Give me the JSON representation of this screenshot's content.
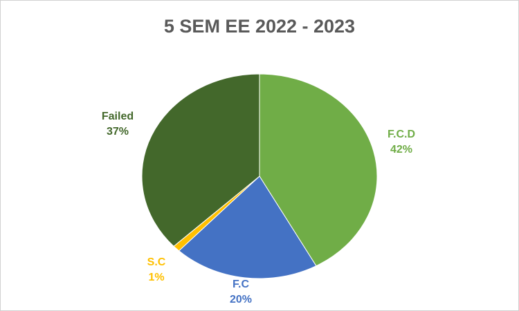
{
  "chart_data": {
    "type": "pie",
    "title": "5 SEM EE 2022 - 2023",
    "categories": [
      "F.C.D",
      "F.C",
      "S.C",
      "Failed"
    ],
    "values": [
      42,
      20,
      1,
      37
    ],
    "value_labels": [
      "42%",
      "20%",
      "1%",
      "37%"
    ],
    "colors": [
      "#70ad47",
      "#4472c4",
      "#ffc000",
      "#43682b"
    ],
    "label_colors": [
      "#70ad47",
      "#4472c4",
      "#ffc000",
      "#43682b"
    ]
  }
}
